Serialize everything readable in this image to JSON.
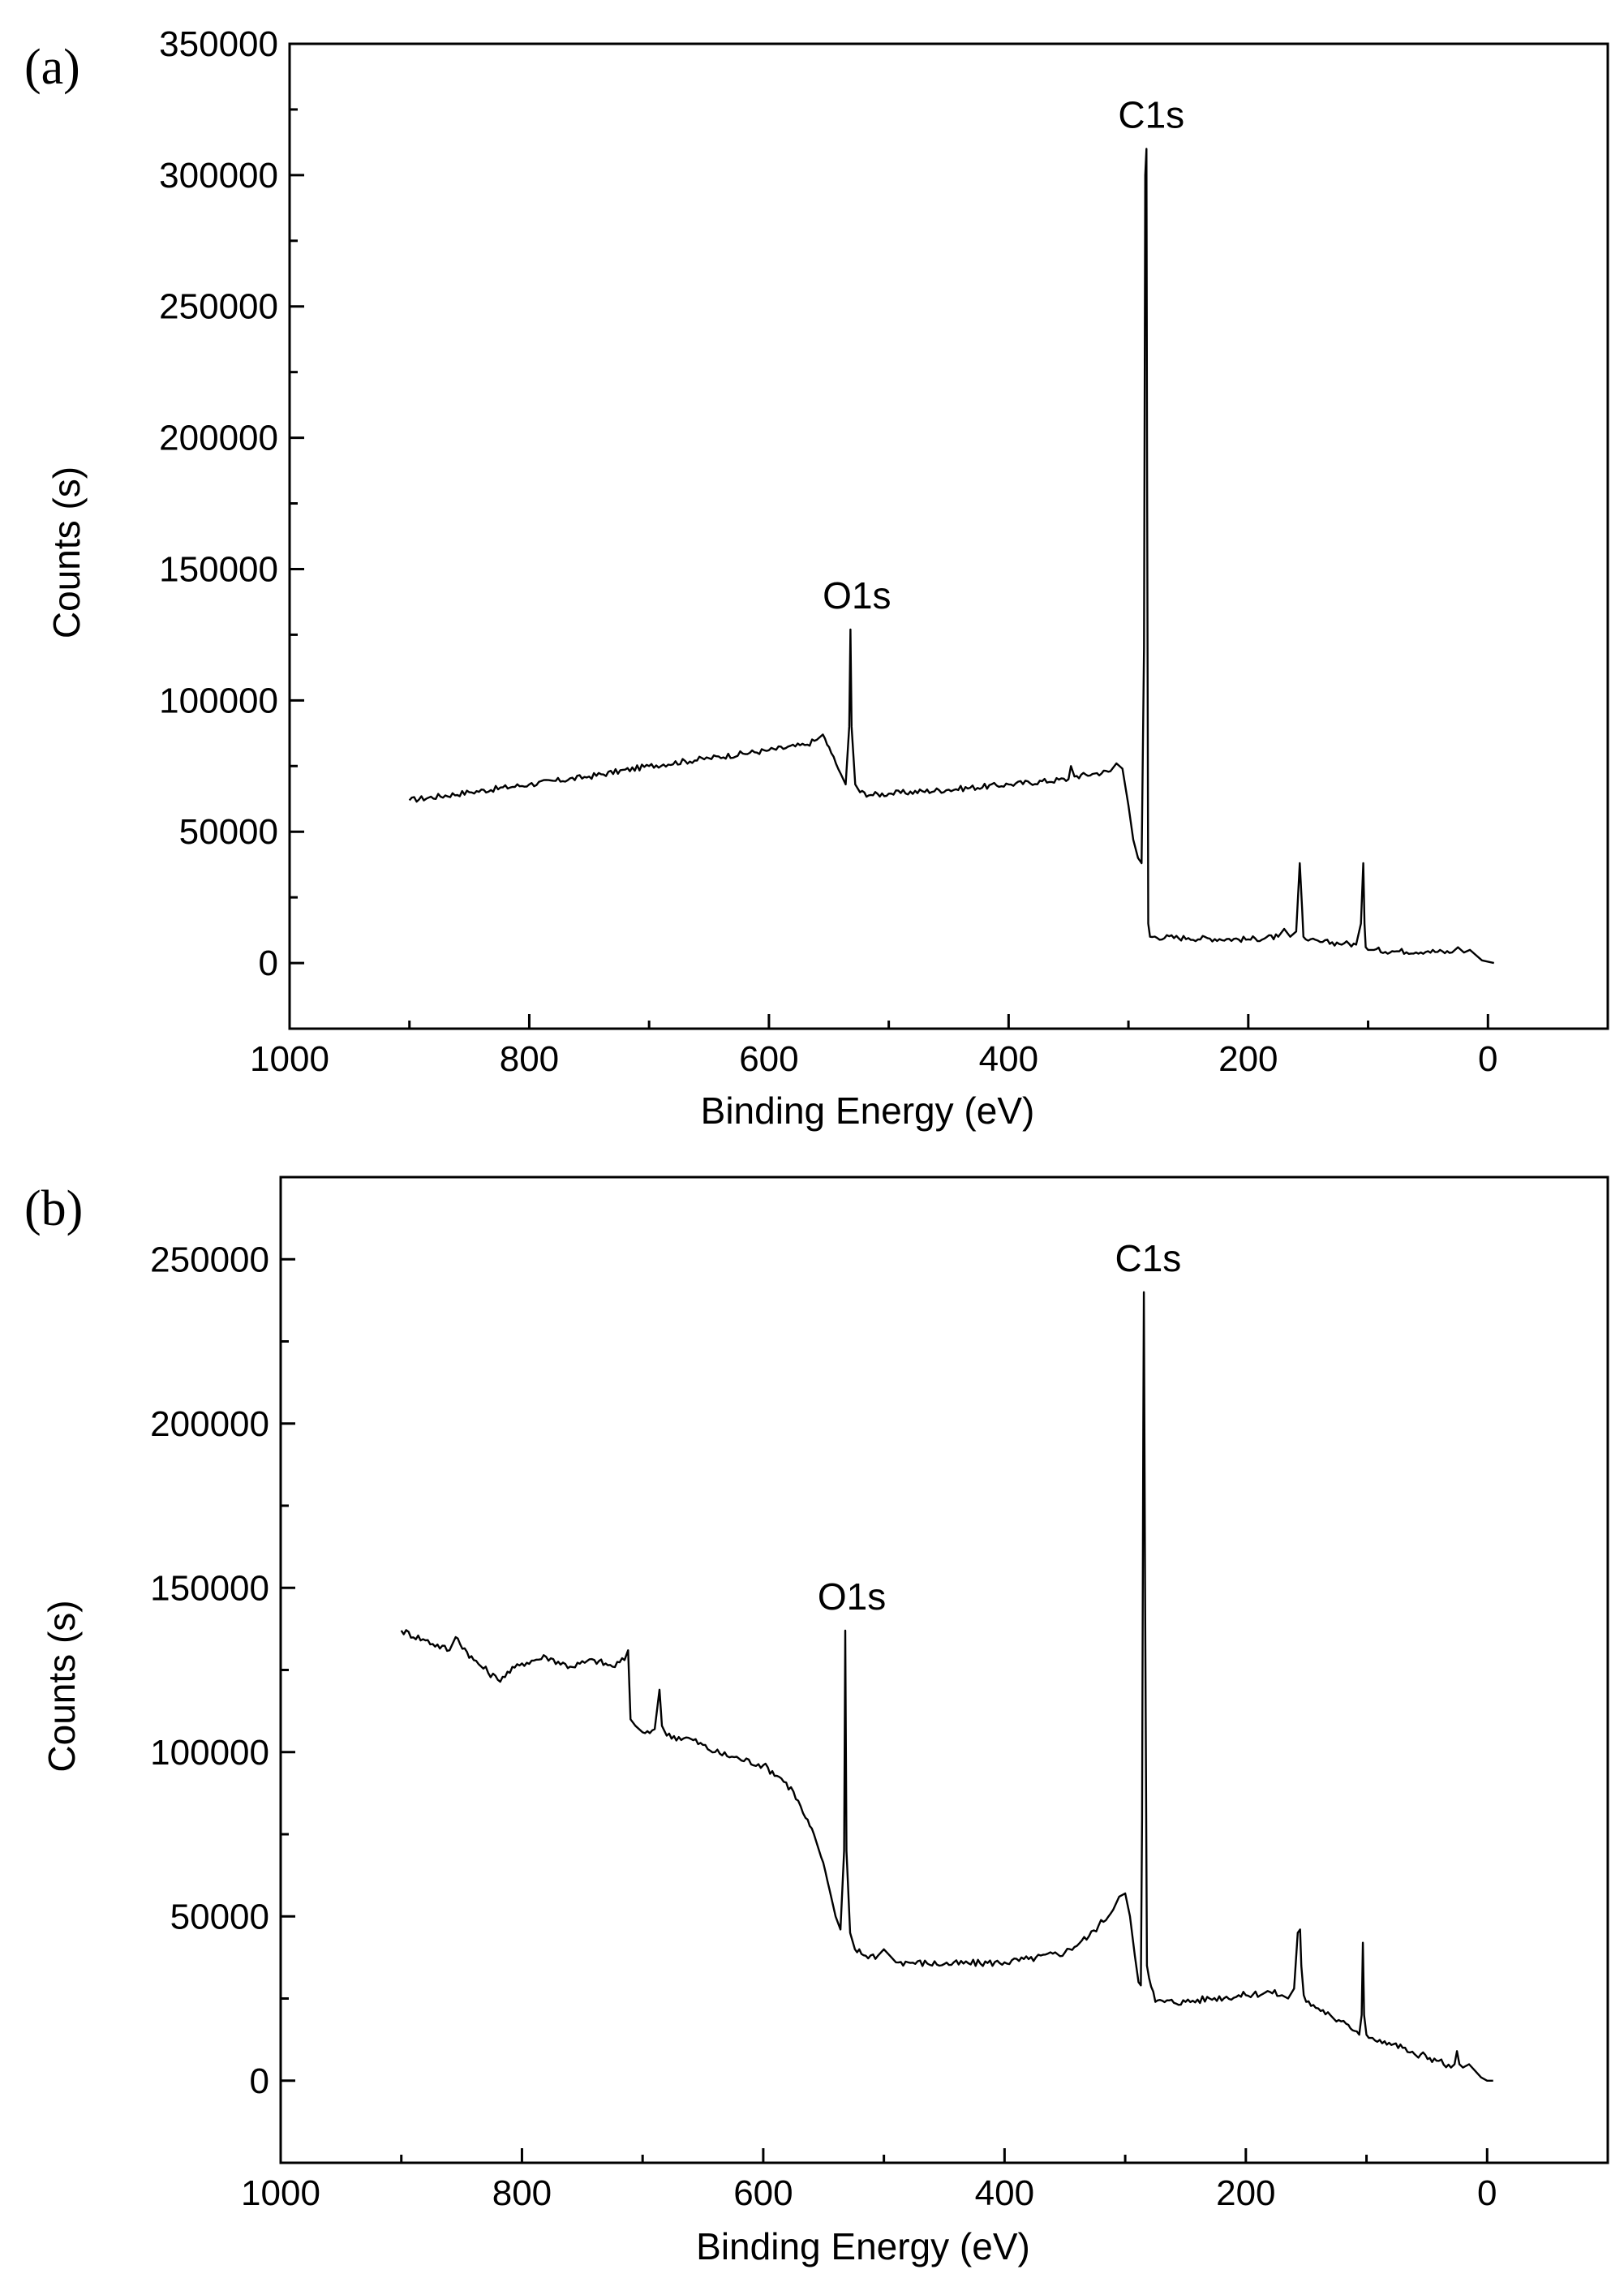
{
  "chart_data": [
    {
      "type": "line",
      "panel_label": "(a)",
      "xlabel": "Binding Energy (eV)",
      "ylabel": "Counts (s)",
      "xlim": [
        1000,
        -100
      ],
      "ylim": [
        -25000,
        350000
      ],
      "x_reversed": true,
      "xticks": [
        1000,
        800,
        600,
        400,
        200,
        0
      ],
      "yticks": [
        0,
        50000,
        100000,
        150000,
        200000,
        250000,
        300000,
        350000
      ],
      "grid": false,
      "annotations": [
        {
          "text": "O1s",
          "x": 532,
          "y": 127000
        },
        {
          "text": "C1s",
          "x": 285,
          "y": 310000
        }
      ],
      "series": [
        {
          "x": [
            900,
            850,
            800,
            750,
            700,
            650,
            600,
            570,
            560,
            555,
            548,
            540,
            536,
            533,
            532,
            531,
            528,
            524,
            515,
            500,
            450,
            400,
            350,
            348,
            345,
            330,
            315,
            310,
            305,
            300,
            296,
            292,
            289,
            287,
            286,
            285,
            284.5,
            283.5,
            282,
            250,
            200,
            175,
            170,
            165,
            160,
            157,
            155,
            154,
            152,
            150,
            140,
            120,
            110,
            106,
            104,
            103,
            102,
            100,
            98,
            95,
            80,
            50,
            30,
            25,
            20,
            15,
            10,
            5,
            0,
            -5
          ],
          "values": [
            62000,
            65000,
            68000,
            71000,
            75000,
            78000,
            81000,
            83000,
            85000,
            87000,
            80000,
            72000,
            68000,
            90000,
            127000,
            90000,
            68000,
            65000,
            64000,
            64500,
            66000,
            68000,
            70000,
            75000,
            71000,
            72000,
            73000,
            76000,
            74000,
            60000,
            47000,
            40000,
            38000,
            120000,
            300000,
            310000,
            200000,
            15000,
            10000,
            9500,
            9000,
            10000,
            13000,
            10000,
            12000,
            38000,
            20000,
            10000,
            9000,
            8500,
            8000,
            7500,
            7000,
            15000,
            38000,
            15000,
            6000,
            5000,
            5000,
            5000,
            4500,
            4500,
            4000,
            6000,
            4000,
            5000,
            3000,
            1000,
            500,
            0
          ]
        }
      ]
    },
    {
      "type": "line",
      "panel_label": "(b)",
      "xlabel": "Binding Energy (eV)",
      "ylabel": "Counts (s)",
      "xlim": [
        1000,
        -100
      ],
      "ylim": [
        -25000,
        275000
      ],
      "x_reversed": true,
      "xticks": [
        1000,
        800,
        600,
        400,
        200,
        0
      ],
      "yticks": [
        0,
        50000,
        100000,
        150000,
        200000,
        250000
      ],
      "grid": false,
      "annotations": [
        {
          "text": "O1s",
          "x": 532,
          "y": 137000
        },
        {
          "text": "C1s",
          "x": 285,
          "y": 240000
        }
      ],
      "series": [
        {
          "x": [
            900,
            880,
            860,
            855,
            840,
            820,
            800,
            780,
            760,
            740,
            725,
            715,
            712,
            710,
            706,
            700,
            690,
            686,
            684,
            680,
            660,
            640,
            620,
            600,
            585,
            575,
            565,
            558,
            552,
            545,
            540,
            536,
            533,
            532,
            531,
            528,
            524,
            515,
            505,
            500,
            495,
            490,
            480,
            450,
            400,
            380,
            350,
            330,
            310,
            305,
            300,
            296,
            292,
            289,
            287,
            286,
            285,
            284.5,
            283.5,
            282,
            275,
            250,
            230,
            200,
            180,
            170,
            165,
            160,
            157,
            155,
            154,
            152,
            150,
            140,
            130,
            125,
            115,
            108,
            106,
            104,
            103,
            102,
            100,
            98,
            95,
            85,
            70,
            60,
            57,
            55,
            40,
            30,
            27,
            25,
            23,
            20,
            15,
            10,
            5,
            0,
            -5
          ],
          "values": [
            137000,
            134000,
            131000,
            135000,
            128000,
            122000,
            127000,
            129000,
            126000,
            128000,
            126000,
            128000,
            131000,
            110000,
            108000,
            106000,
            107000,
            119000,
            108000,
            105000,
            104000,
            100000,
            98000,
            96000,
            92000,
            88000,
            80000,
            75000,
            68000,
            58000,
            50000,
            46000,
            70000,
            137000,
            70000,
            45000,
            40000,
            38000,
            38000,
            40000,
            38000,
            36000,
            36000,
            35500,
            36000,
            37000,
            39000,
            44000,
            52000,
            56000,
            57000,
            50000,
            38000,
            30000,
            29000,
            80000,
            200000,
            240000,
            150000,
            35000,
            24000,
            24000,
            25000,
            26000,
            27000,
            26000,
            25000,
            28000,
            45000,
            46000,
            35000,
            26000,
            24000,
            22000,
            20000,
            18000,
            17000,
            15000,
            14000,
            20000,
            42000,
            20000,
            14000,
            13000,
            13000,
            12000,
            10000,
            8000,
            7000,
            8000,
            6000,
            4000,
            5000,
            9000,
            5000,
            4000,
            5000,
            3000,
            1000,
            0,
            0
          ]
        }
      ]
    }
  ]
}
